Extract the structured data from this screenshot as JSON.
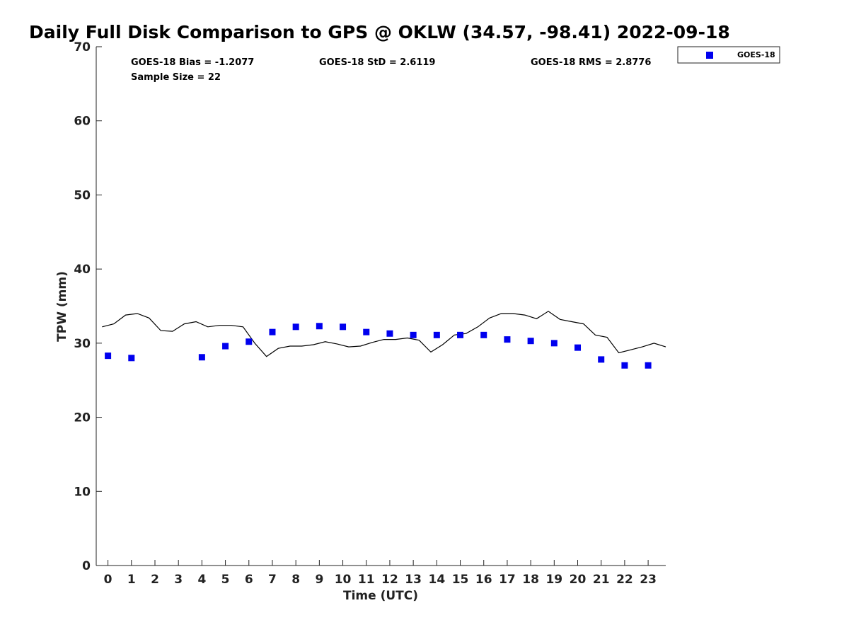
{
  "chart_data": {
    "type": "scatter",
    "title": "Daily Full Disk Comparison to GPS @ OKLW (34.57, -98.41) 2022-09-18",
    "xlabel": "Time (UTC)",
    "ylabel": "TPW (mm)",
    "xlim": [
      -0.5,
      23.75
    ],
    "ylim": [
      0,
      70
    ],
    "x_ticks": [
      0,
      1,
      2,
      3,
      4,
      5,
      6,
      7,
      8,
      9,
      10,
      11,
      12,
      13,
      14,
      15,
      16,
      17,
      18,
      19,
      20,
      21,
      22,
      23
    ],
    "y_ticks": [
      0,
      10,
      20,
      30,
      40,
      50,
      60,
      70
    ],
    "grid": false,
    "legend_position": "top-right, outside plot",
    "stats": {
      "bias": "GOES-18 Bias = -1.2077",
      "std": "GOES-18 StD = 2.6119",
      "rms": "GOES-18 RMS = 2.8776",
      "sample_size": "Sample Size = 22"
    },
    "series": [
      {
        "name": "GOES-18",
        "kind": "markers",
        "marker": "square",
        "color": "#0000ee",
        "x": [
          0,
          1,
          4,
          5,
          6,
          7,
          8,
          9,
          10,
          11,
          12,
          13,
          14,
          15,
          16,
          17,
          18,
          19,
          20,
          21,
          22,
          23
        ],
        "y": [
          28.3,
          28.0,
          28.1,
          29.6,
          30.2,
          31.5,
          32.2,
          32.3,
          32.2,
          31.5,
          31.3,
          31.1,
          31.1,
          31.1,
          31.1,
          30.5,
          30.3,
          30.0,
          29.4,
          27.8,
          27.0,
          27.0
        ]
      },
      {
        "kind": "line",
        "color": "#000000",
        "x": [
          -0.25,
          0.25,
          0.75,
          1.25,
          1.75,
          2.25,
          2.75,
          3.25,
          3.75,
          4.25,
          4.75,
          5.25,
          5.75,
          6.25,
          6.75,
          7.25,
          7.75,
          8.25,
          8.75,
          9.25,
          9.75,
          10.25,
          10.75,
          11.25,
          11.75,
          12.25,
          12.75,
          13.25,
          13.75,
          14.25,
          14.75,
          15.25,
          15.75,
          16.25,
          16.75,
          17.25,
          17.75,
          18.25,
          18.75,
          19.25,
          19.75,
          20.25,
          20.75,
          21.25,
          21.75,
          22.25,
          22.75,
          23.25,
          23.75
        ],
        "y": [
          32.2,
          32.6,
          33.8,
          34.0,
          33.4,
          31.7,
          31.6,
          32.6,
          32.9,
          32.2,
          32.4,
          32.4,
          32.2,
          30.0,
          28.2,
          29.3,
          29.6,
          29.6,
          29.8,
          30.2,
          29.9,
          29.5,
          29.6,
          30.1,
          30.5,
          30.5,
          30.7,
          30.4,
          28.8,
          29.8,
          31.1,
          31.3,
          32.2,
          33.4,
          34.0,
          34.0,
          33.8,
          33.3,
          34.3,
          33.2,
          32.9,
          32.6,
          31.1,
          30.8,
          28.7,
          29.1,
          29.5,
          30.0,
          29.5
        ]
      }
    ]
  }
}
